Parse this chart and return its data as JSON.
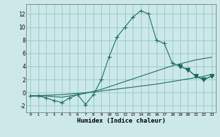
{
  "xlabel": "Humidex (Indice chaleur)",
  "ylabel": "",
  "bg_color": "#cce8e8",
  "grid_color": "#99cccc",
  "line_color": "#1a6b5a",
  "xlim": [
    -0.5,
    23.5
  ],
  "ylim": [
    -3.0,
    13.5
  ],
  "yticks": [
    -2,
    0,
    2,
    4,
    6,
    8,
    10,
    12
  ],
  "xtick_labels": [
    "0",
    "1",
    "2",
    "3",
    "4",
    "5",
    "6",
    "7",
    "8",
    "9",
    "10",
    "11",
    "12",
    "13",
    "14",
    "15",
    "16",
    "17",
    "18",
    "19",
    "20",
    "21",
    "22",
    "23"
  ],
  "series": [
    {
      "x": [
        0,
        1,
        2,
        3,
        4,
        5,
        6,
        7,
        8,
        9,
        10,
        11,
        12,
        13,
        14,
        15,
        16,
        17,
        18,
        19,
        20,
        21,
        22,
        23
      ],
      "y": [
        -0.5,
        -0.5,
        -0.8,
        -1.2,
        -1.5,
        -0.8,
        -0.3,
        -1.8,
        -0.3,
        2.0,
        5.5,
        8.5,
        10.0,
        11.5,
        12.5,
        12.0,
        8.0,
        7.5,
        4.5,
        4.0,
        3.5,
        2.5,
        2.0,
        2.5
      ],
      "marker": "+",
      "markersize": 4
    },
    {
      "x": [
        0,
        1,
        2,
        3,
        4,
        5,
        6,
        7,
        8,
        9,
        10,
        11,
        12,
        13,
        14,
        15,
        16,
        17,
        18,
        19,
        20,
        21,
        22,
        23
      ],
      "y": [
        -0.5,
        -0.45,
        -0.4,
        -0.35,
        -0.3,
        -0.2,
        -0.1,
        0.0,
        0.1,
        0.25,
        0.4,
        0.55,
        0.7,
        0.85,
        1.0,
        1.15,
        1.3,
        1.5,
        1.7,
        1.9,
        2.1,
        2.3,
        2.5,
        2.8
      ],
      "marker": null,
      "markersize": 0
    },
    {
      "x": [
        0,
        1,
        2,
        3,
        4,
        5,
        6,
        7,
        8,
        9,
        10,
        11,
        12,
        13,
        14,
        15,
        16,
        17,
        18,
        19,
        20,
        21,
        22,
        23
      ],
      "y": [
        -0.5,
        -0.5,
        -0.5,
        -0.6,
        -0.7,
        -0.5,
        -0.3,
        -0.1,
        0.2,
        0.5,
        0.9,
        1.3,
        1.7,
        2.1,
        2.5,
        2.9,
        3.3,
        3.7,
        4.1,
        4.4,
        4.7,
        5.0,
        5.2,
        5.4
      ],
      "marker": null,
      "markersize": 0
    },
    {
      "x": [
        19,
        20,
        21,
        22,
        23
      ],
      "y": [
        4.0,
        3.5,
        2.5,
        2.0,
        2.5
      ],
      "marker": "v",
      "markersize": 4
    }
  ]
}
